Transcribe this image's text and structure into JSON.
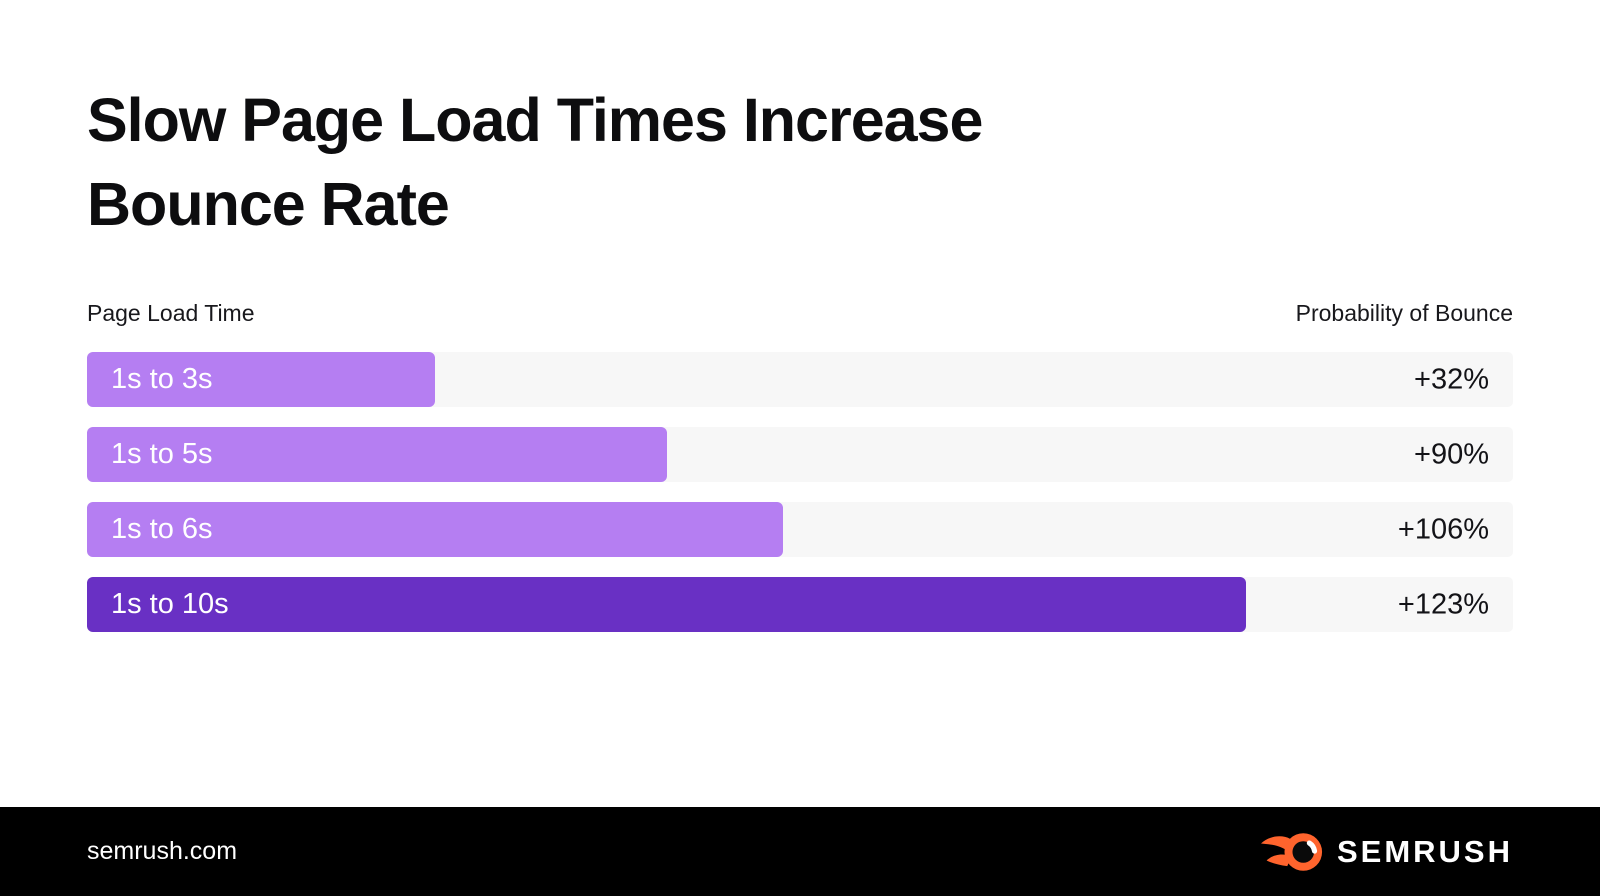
{
  "title": {
    "full": "Slow Page Load Times Increase Bounce Rate",
    "line1": "Slow Page Load Times Increase",
    "line2": "Bounce Rate"
  },
  "columns": {
    "left": "Page Load Time",
    "right": "Probability of Bounce"
  },
  "chart_data": {
    "type": "bar",
    "orientation": "horizontal",
    "title": "Slow Page Load Times Increase Bounce Rate",
    "left_header": "Page Load Time",
    "right_header": "Probability of Bounce",
    "categories": [
      "1s to 3s",
      "1s to 5s",
      "1s to 6s",
      "1s to 10s"
    ],
    "load_time_seconds": [
      3,
      5,
      6,
      10
    ],
    "values": [
      32,
      90,
      106,
      123
    ],
    "value_labels": [
      "+32%",
      "+90%",
      "+106%",
      "+123%"
    ],
    "bar_width_pct": [
      24.4,
      40.7,
      48.8,
      81.3
    ],
    "bar_colors": [
      "#B57EF2",
      "#B57EF2",
      "#B57EF2",
      "#6930C4"
    ],
    "track_color": "#F7F7F7",
    "grid": false,
    "legend": false
  },
  "footer": {
    "site": "semrush.com",
    "brand": "SEMRUSH"
  },
  "colors": {
    "accent_light": "#B57EF2",
    "accent_dark": "#6930C4",
    "track": "#F7F7F7",
    "footer_bg": "#000000",
    "logo_orange": "#FF642D",
    "text": "#111114"
  }
}
